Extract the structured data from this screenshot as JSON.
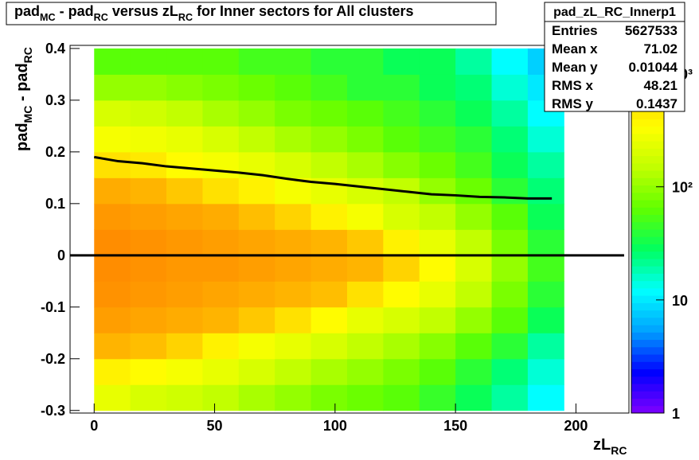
{
  "chart_data": {
    "type": "heatmap",
    "title_parts": [
      {
        "text": "pad"
      },
      {
        "text": "MC",
        "sub": true
      },
      {
        "text": " - pad"
      },
      {
        "text": "RC",
        "sub": true
      },
      {
        "text": " versus zL"
      },
      {
        "text": "RC",
        "sub": true
      },
      {
        "text": " for Inner sectors for All clusters"
      }
    ],
    "x_label_parts": [
      {
        "text": "zL"
      },
      {
        "text": "RC",
        "sub": true
      }
    ],
    "y_label_parts": [
      {
        "text": "pad"
      },
      {
        "text": "MC",
        "sub": true
      },
      {
        "text": " - pad"
      },
      {
        "text": "RC",
        "sub": true
      }
    ],
    "xlim": [
      -10,
      222
    ],
    "ylim": [
      -0.305,
      0.406
    ],
    "xticks": [
      0,
      50,
      100,
      150,
      200
    ],
    "yticks": [
      -0.3,
      -0.2,
      -0.1,
      0,
      0.1,
      0.2,
      0.3,
      0.4
    ],
    "xbins": [
      0,
      15,
      30,
      45,
      60,
      75,
      90,
      105,
      120,
      135,
      150,
      165,
      180,
      195
    ],
    "ybins": [
      -0.3,
      -0.25,
      -0.2,
      -0.15,
      -0.1,
      -0.05,
      0,
      0.05,
      0.1,
      0.15,
      0.2,
      0.25,
      0.3,
      0.35,
      0.4
    ],
    "values": [
      [
        250,
        200,
        180,
        150,
        120,
        100,
        80,
        70,
        60,
        45,
        30,
        20,
        12
      ],
      [
        400,
        350,
        300,
        250,
        200,
        150,
        120,
        100,
        80,
        60,
        40,
        25,
        15
      ],
      [
        900,
        800,
        600,
        400,
        300,
        250,
        200,
        150,
        120,
        90,
        60,
        40,
        20
      ],
      [
        1200,
        1100,
        1000,
        900,
        700,
        500,
        350,
        250,
        200,
        150,
        100,
        60,
        30
      ],
      [
        1400,
        1300,
        1200,
        1100,
        1000,
        900,
        800,
        500,
        350,
        250,
        150,
        80,
        40
      ],
      [
        1500,
        1400,
        1300,
        1300,
        1200,
        1100,
        1000,
        900,
        600,
        350,
        200,
        100,
        50
      ],
      [
        1500,
        1400,
        1300,
        1200,
        1100,
        1000,
        900,
        700,
        400,
        250,
        150,
        80,
        40
      ],
      [
        1300,
        1200,
        1100,
        1000,
        800,
        600,
        400,
        300,
        200,
        150,
        100,
        60,
        30
      ],
      [
        1000,
        900,
        700,
        500,
        400,
        300,
        250,
        200,
        150,
        100,
        70,
        40,
        25
      ],
      [
        500,
        450,
        350,
        300,
        250,
        200,
        150,
        120,
        90,
        70,
        50,
        30,
        20
      ],
      [
        300,
        280,
        250,
        200,
        150,
        120,
        100,
        80,
        60,
        50,
        40,
        25,
        15
      ],
      [
        200,
        180,
        150,
        120,
        100,
        80,
        70,
        60,
        50,
        40,
        30,
        20,
        12
      ],
      [
        100,
        100,
        90,
        80,
        70,
        60,
        50,
        40,
        40,
        30,
        25,
        15,
        10
      ],
      [
        60,
        60,
        60,
        60,
        50,
        50,
        40,
        40,
        30,
        30,
        20,
        12,
        8
      ]
    ],
    "zlim": [
      1,
      1780
    ],
    "zlog": true,
    "zticks": [
      1,
      10,
      {
        "value": 100,
        "label": "10²"
      },
      {
        "value": 1000,
        "label": "10³"
      }
    ],
    "palette": [
      "#8000ff",
      "#0000ff",
      "#00a0ff",
      "#00ffff",
      "#00ff60",
      "#60ff00",
      "#c0ff00",
      "#ffff00",
      "#ffc000",
      "#ff8000"
    ],
    "overlays": [
      {
        "color": "#000000",
        "x": [
          0,
          10,
          20,
          30,
          40,
          50,
          60,
          70,
          80,
          90,
          100,
          110,
          120,
          130,
          140,
          150,
          160,
          170,
          180,
          190
        ],
        "values": [
          0.19,
          0.182,
          0.178,
          0.172,
          0.168,
          0.164,
          0.16,
          0.155,
          0.148,
          0.142,
          0.138,
          0.133,
          0.128,
          0.123,
          0.118,
          0.116,
          0.113,
          0.112,
          0.11,
          0.11
        ]
      },
      {
        "color": "#000000",
        "x": [
          -10,
          0,
          20,
          40,
          60,
          80,
          100,
          120,
          140,
          160,
          180,
          200,
          220
        ],
        "values": [
          0,
          0,
          0,
          0,
          0,
          0,
          0,
          0,
          0,
          0,
          0,
          0,
          0
        ]
      }
    ]
  },
  "stats": {
    "name": "pad_zL_RC_Innerp1",
    "rows": [
      [
        "Entries",
        "5627533"
      ],
      [
        "Mean x",
        "71.02"
      ],
      [
        "Mean y",
        "0.01044"
      ],
      [
        "RMS x",
        "48.21"
      ],
      [
        "RMS y",
        "0.1437"
      ]
    ]
  }
}
